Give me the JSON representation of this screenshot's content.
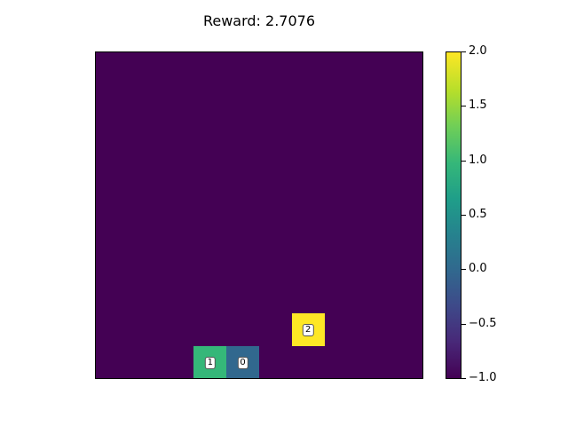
{
  "header": {
    "title": "Reward: 2.7076"
  },
  "grid": {
    "rows": 10,
    "cols": 10,
    "background_value": -1.0,
    "entities": [
      {
        "label": "2",
        "row": 8,
        "col": 6,
        "value": 2.0,
        "color": "#fde725"
      },
      {
        "label": "1",
        "row": 9,
        "col": 3,
        "value": 1.0,
        "color": "#35b779"
      },
      {
        "label": "0",
        "row": 9,
        "col": 4,
        "value": 0.0,
        "color": "#31688e"
      }
    ]
  },
  "colorbar": {
    "min": -1.0,
    "max": 2.0,
    "colormap": "viridis",
    "ticks": [
      {
        "value": -1.0,
        "label": "−1.0"
      },
      {
        "value": -0.5,
        "label": "−0.5"
      },
      {
        "value": 0.0,
        "label": "0.0"
      },
      {
        "value": 0.5,
        "label": "0.5"
      },
      {
        "value": 1.0,
        "label": "1.0"
      },
      {
        "value": 1.5,
        "label": "1.5"
      },
      {
        "value": 2.0,
        "label": "2.0"
      }
    ]
  }
}
